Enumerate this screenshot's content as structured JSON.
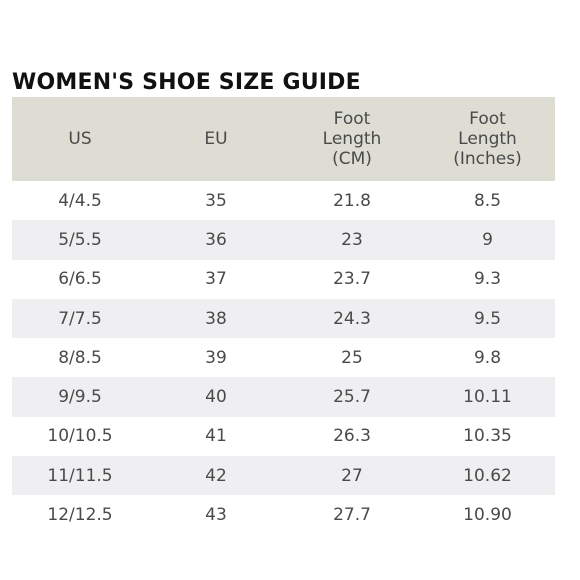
{
  "title": "WOMEN'S SHOE SIZE GUIDE",
  "colors": {
    "header_bg": "#deddd3",
    "stripe_bg": "#efeff1",
    "text": "#4a4a4a",
    "title": "#111111"
  },
  "table": {
    "headers": [
      [
        "US"
      ],
      [
        "EU"
      ],
      [
        "Foot",
        "Length",
        "(CM)"
      ],
      [
        "Foot",
        "Length",
        "(Inches)"
      ]
    ],
    "rows": [
      [
        "4/4.5",
        "35",
        "21.8",
        "8.5"
      ],
      [
        "5/5.5",
        "36",
        "23",
        "9"
      ],
      [
        "6/6.5",
        "37",
        "23.7",
        "9.3"
      ],
      [
        "7/7.5",
        "38",
        "24.3",
        "9.5"
      ],
      [
        "8/8.5",
        "39",
        "25",
        "9.8"
      ],
      [
        "9/9.5",
        "40",
        "25.7",
        "10.11"
      ],
      [
        "10/10.5",
        "41",
        "26.3",
        "10.35"
      ],
      [
        "11/11.5",
        "42",
        "27",
        "10.62"
      ],
      [
        "12/12.5",
        "43",
        "27.7",
        "10.90"
      ]
    ]
  }
}
